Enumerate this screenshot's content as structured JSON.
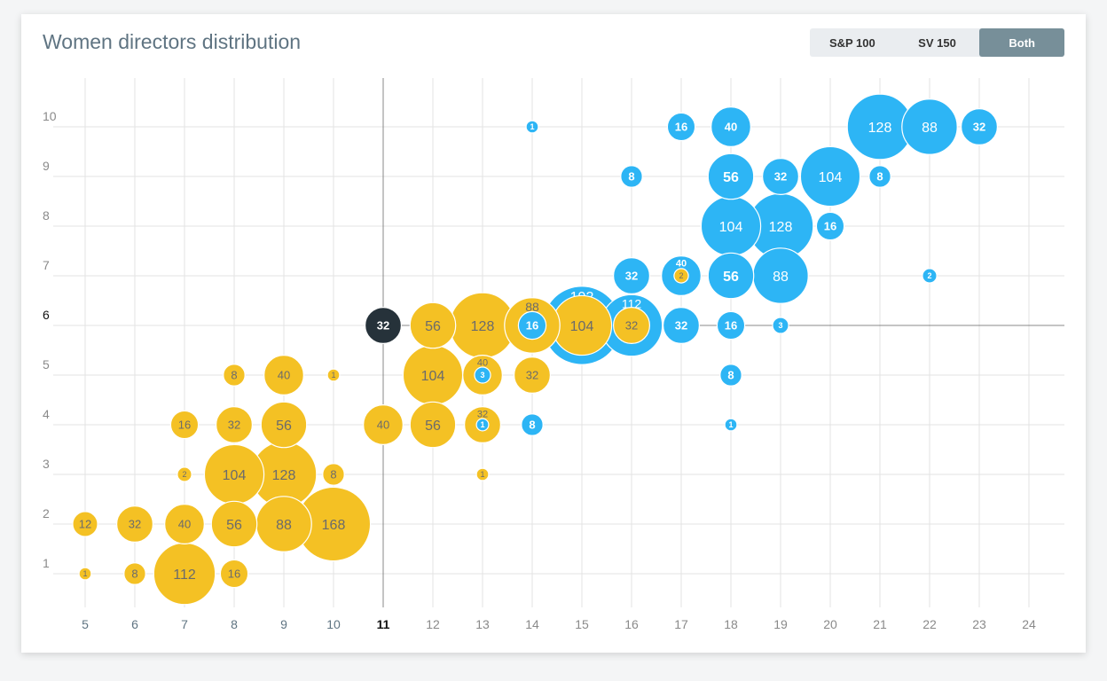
{
  "title": "Women directors distribution",
  "toggle": {
    "options": [
      "S&P 100",
      "SV 150",
      "Both"
    ],
    "active": "Both"
  },
  "colors": {
    "sp": "#f4c124",
    "sv": "#2db5f5",
    "highlight": "#26323a",
    "sp_label": "#6b6b6b",
    "sv_label": "#ffffff"
  },
  "chart_data": {
    "type": "scatter",
    "title": "Women directors distribution",
    "xlabel": "",
    "ylabel": "",
    "xlim": [
      5,
      24
    ],
    "ylim": [
      1,
      10
    ],
    "x_ticks": [
      5,
      6,
      7,
      8,
      9,
      10,
      11,
      12,
      13,
      14,
      15,
      16,
      17,
      18,
      19,
      20,
      21,
      22,
      23,
      24
    ],
    "y_ticks": [
      1,
      2,
      3,
      4,
      5,
      6,
      7,
      8,
      9,
      10
    ],
    "crosshair": {
      "x": 11,
      "y": 6,
      "value": 32
    },
    "series": [
      {
        "name": "S&P 100",
        "color": "#f4c124",
        "points": [
          [
            5,
            1,
            1
          ],
          [
            6,
            1,
            8
          ],
          [
            7,
            1,
            112
          ],
          [
            8,
            1,
            16
          ],
          [
            5,
            2,
            12
          ],
          [
            6,
            2,
            32
          ],
          [
            7,
            2,
            40
          ],
          [
            8,
            2,
            56
          ],
          [
            9,
            2,
            88
          ],
          [
            10,
            2,
            168
          ],
          [
            7,
            3,
            2
          ],
          [
            8,
            3,
            104
          ],
          [
            9,
            3,
            128
          ],
          [
            10,
            3,
            8
          ],
          [
            13,
            3,
            1
          ],
          [
            7,
            4,
            16
          ],
          [
            8,
            4,
            32
          ],
          [
            9,
            4,
            56
          ],
          [
            11,
            4,
            40
          ],
          [
            12,
            4,
            56
          ],
          [
            13,
            4,
            32
          ],
          [
            8,
            5,
            8
          ],
          [
            9,
            5,
            40
          ],
          [
            10,
            5,
            1
          ],
          [
            12,
            5,
            104
          ],
          [
            13,
            5,
            40
          ],
          [
            14,
            5,
            32
          ],
          [
            11,
            6,
            32
          ],
          [
            12,
            6,
            56
          ],
          [
            13,
            6,
            128
          ],
          [
            14,
            6,
            88
          ],
          [
            15,
            6,
            104
          ],
          [
            16,
            6,
            32
          ],
          [
            17,
            7,
            2
          ]
        ]
      },
      {
        "name": "SV 150",
        "color": "#2db5f5",
        "points": [
          [
            13,
            4,
            1
          ],
          [
            14,
            4,
            8
          ],
          [
            18,
            4,
            1
          ],
          [
            13,
            5,
            3
          ],
          [
            18,
            5,
            8
          ],
          [
            14,
            6,
            16
          ],
          [
            15,
            6,
            192
          ],
          [
            16,
            6,
            112
          ],
          [
            17,
            6,
            32
          ],
          [
            18,
            6,
            16
          ],
          [
            19,
            6,
            3
          ],
          [
            16,
            7,
            32
          ],
          [
            17,
            7,
            40
          ],
          [
            18,
            7,
            56
          ],
          [
            19,
            7,
            88
          ],
          [
            22,
            7,
            2
          ],
          [
            18,
            8,
            104
          ],
          [
            19,
            8,
            128
          ],
          [
            20,
            8,
            16
          ],
          [
            16,
            9,
            8
          ],
          [
            18,
            9,
            56
          ],
          [
            19,
            9,
            32
          ],
          [
            20,
            9,
            104
          ],
          [
            21,
            9,
            8
          ],
          [
            14,
            10,
            1
          ],
          [
            17,
            10,
            16
          ],
          [
            18,
            10,
            40
          ],
          [
            21,
            10,
            128
          ],
          [
            22,
            10,
            88
          ],
          [
            23,
            10,
            32
          ]
        ]
      }
    ]
  }
}
